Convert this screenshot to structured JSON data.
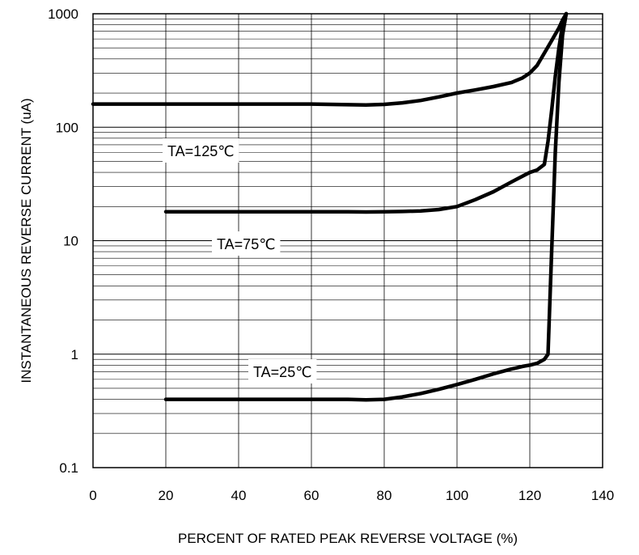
{
  "chart_data": {
    "type": "line",
    "title": "",
    "xlabel": "PERCENT OF RATED PEAK REVERSE VOLTAGE (%)",
    "ylabel": "INSTANTANEOUS REVERSE CURRENT (uA)",
    "xlim": [
      0,
      140
    ],
    "ylim": [
      0.1,
      1000
    ],
    "y_scale": "log",
    "grid": true,
    "x_ticks": [
      "0",
      "20",
      "40",
      "60",
      "80",
      "100",
      "120",
      "140"
    ],
    "y_ticks": [
      "0.1",
      "1",
      "10",
      "100",
      "1000"
    ],
    "series": [
      {
        "name": "TA=125℃",
        "x": [
          0,
          20,
          40,
          60,
          70,
          75,
          80,
          85,
          90,
          95,
          100,
          105,
          110,
          115,
          118,
          120,
          122,
          124,
          126,
          128,
          129,
          130
        ],
        "y": [
          160,
          160,
          160,
          160,
          158,
          157,
          159,
          164,
          172,
          185,
          200,
          213,
          228,
          248,
          272,
          300,
          350,
          450,
          580,
          750,
          880,
          1000
        ]
      },
      {
        "name": "TA=75℃",
        "x": [
          20,
          40,
          60,
          70,
          75,
          80,
          85,
          90,
          95,
          100,
          105,
          110,
          115,
          118,
          120,
          122,
          124,
          125,
          126,
          127,
          128,
          129,
          130
        ],
        "y": [
          18,
          18,
          18,
          18,
          17.9,
          18,
          18.1,
          18.3,
          18.8,
          20,
          23,
          27,
          33,
          37,
          40,
          42,
          47,
          75,
          140,
          280,
          500,
          800,
          1000
        ]
      },
      {
        "name": "TA=25℃",
        "x": [
          20,
          40,
          60,
          70,
          75,
          80,
          85,
          90,
          95,
          100,
          105,
          110,
          115,
          118,
          120,
          122,
          124,
          125,
          126,
          127,
          128,
          129,
          130
        ],
        "y": [
          0.4,
          0.4,
          0.4,
          0.4,
          0.395,
          0.4,
          0.42,
          0.45,
          0.49,
          0.54,
          0.6,
          0.67,
          0.74,
          0.78,
          0.8,
          0.83,
          0.9,
          1.0,
          8,
          60,
          250,
          650,
          1000
        ]
      }
    ],
    "annotations": [
      "TA=125℃",
      "TA=75℃",
      "TA=25℃"
    ]
  }
}
